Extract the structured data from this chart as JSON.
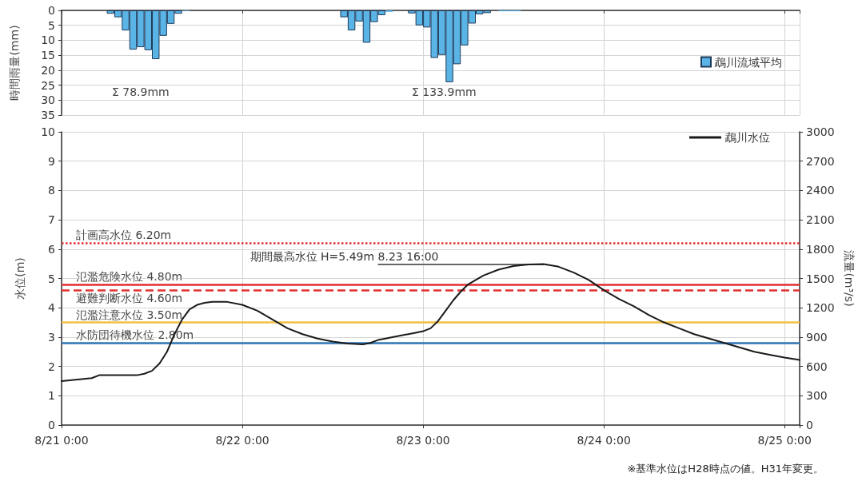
{
  "chart_data": [
    {
      "type": "bar",
      "ylabel": "時間雨量(mm)",
      "legend": "right",
      "grid": true,
      "tick_labels": "y",
      "xlim": [
        "--08-21T00:00",
        "--08-25T02:00"
      ],
      "xticks": [
        {
          "value": "--08-21T00:00",
          "label": null
        },
        {
          "value": "--08-22T00:00",
          "label": null
        },
        {
          "value": "--08-23T00:00",
          "label": null
        },
        {
          "value": "--08-24T00:00",
          "label": null
        },
        {
          "value": "--08-25T00:00",
          "label": null
        }
      ],
      "ylim": [
        35,
        0
      ],
      "yticks": [
        0,
        5,
        10,
        15,
        20,
        25,
        30,
        35
      ],
      "annotations": [
        "Σ 78.9mm",
        "Σ 133.9mm"
      ],
      "series": [
        {
          "name": "鵡川流域平均",
          "color": "#5ab4e6",
          "x": [
            "--08-21T06:30",
            "--08-21T07:30",
            "--08-21T08:30",
            "--08-21T09:30",
            "--08-21T10:30",
            "--08-21T11:30",
            "--08-21T12:30",
            "--08-21T13:30",
            "--08-21T14:30",
            "--08-21T15:30",
            "--08-21T16:30",
            "--08-22T13:30",
            "--08-22T14:30",
            "--08-22T15:30",
            "--08-22T16:30",
            "--08-22T17:30",
            "--08-22T18:30",
            "--08-22T19:30",
            "--08-22T22:30",
            "--08-22T23:30",
            "--08-23T00:30",
            "--08-23T01:30",
            "--08-23T02:30",
            "--08-23T03:30",
            "--08-23T04:30",
            "--08-23T05:30",
            "--08-23T06:30",
            "--08-23T07:30",
            "--08-23T08:30",
            "--08-23T10:30",
            "--08-23T11:30",
            "--08-23T12:30"
          ],
          "values": [
            1.1,
            2.3,
            6.7,
            13.1,
            12.3,
            13.3,
            16.3,
            8.5,
            4.5,
            1.1,
            0.2,
            2.3,
            6.7,
            3.7,
            10.8,
            3.9,
            1.6,
            0.5,
            1.0,
            5.0,
            5.7,
            15.9,
            14.9,
            24.0,
            18.0,
            11.7,
            4.4,
            1.3,
            0.9,
            0.3,
            0.3,
            0.3
          ]
        }
      ]
    },
    {
      "type": "line",
      "ylabel": "水位(m)",
      "y2label": "流量(m³/s)",
      "legend": "top right",
      "grid": true,
      "marker": "none",
      "line_style": "solid",
      "xlim": [
        "--08-21T00:00",
        "--08-25T02:00"
      ],
      "xticks": [
        {
          "value": "--08-21T00:00",
          "label": "8/21 0:00"
        },
        {
          "value": "--08-22T00:00",
          "label": "8/22 0:00"
        },
        {
          "value": "--08-23T00:00",
          "label": "8/23 0:00"
        },
        {
          "value": "--08-24T00:00",
          "label": "8/24 0:00"
        },
        {
          "value": "--08-25T00:00",
          "label": "8/25 0:00"
        }
      ],
      "ylim": [
        0,
        10
      ],
      "yticks": [
        0,
        1,
        2,
        3,
        4,
        5,
        6,
        7,
        8,
        9,
        10
      ],
      "y2lim": [
        0,
        3000
      ],
      "y2ticks": [
        0,
        300,
        600,
        900,
        1200,
        1500,
        1800,
        2100,
        2400,
        2700,
        3000
      ],
      "ref_lines": [
        {
          "axis": "y",
          "value": 6.2,
          "label": "計画高水位 6.20m",
          "color": "#e03030",
          "line_style": "dotted"
        },
        {
          "axis": "y",
          "value": 4.8,
          "label": "氾濫危険水位 4.80m",
          "color": "#e03030",
          "line_style": "solid"
        },
        {
          "axis": "y",
          "value": 4.6,
          "label": "避難判断水位 4.60m",
          "color": "#e03030",
          "line_style": "dashed"
        },
        {
          "axis": "y",
          "value": 3.5,
          "label": "氾濫注意水位 3.50m",
          "color": "#f0c040",
          "line_style": "solid"
        },
        {
          "axis": "y",
          "value": 2.8,
          "label": "水防団待機水位 2.80m",
          "color": "#2e75b6",
          "line_style": "solid"
        }
      ],
      "annotations": [
        {
          "text": "期間最高水位 H=5.49m 8.23 16:00",
          "x": "--08-23T16:00",
          "y": 5.49
        },
        "※基準水位はH28時点の値。H31年変更。"
      ],
      "series": [
        {
          "name": "鵡川水位",
          "color": "#1a1a1a",
          "x": [
            "--08-21T00:00",
            "--08-21T04:00",
            "--08-21T05:00",
            "--08-21T10:00",
            "--08-21T11:00",
            "--08-21T12:00",
            "--08-21T13:00",
            "--08-21T14:00",
            "--08-21T15:00",
            "--08-21T16:00",
            "--08-21T17:00",
            "--08-21T18:00",
            "--08-21T19:00",
            "--08-21T20:00",
            "--08-21T22:00",
            "--08-22T00:00",
            "--08-22T02:00",
            "--08-22T04:00",
            "--08-22T06:00",
            "--08-22T08:00",
            "--08-22T10:00",
            "--08-22T12:00",
            "--08-22T14:00",
            "--08-22T16:00",
            "--08-22T17:00",
            "--08-22T18:00",
            "--08-22T19:00",
            "--08-22T21:00",
            "--08-22T23:00",
            "--08-23T00:00",
            "--08-23T01:00",
            "--08-23T02:00",
            "--08-23T03:00",
            "--08-23T04:00",
            "--08-23T05:00",
            "--08-23T06:00",
            "--08-23T08:00",
            "--08-23T10:00",
            "--08-23T12:00",
            "--08-23T14:00",
            "--08-23T16:00",
            "--08-23T18:00",
            "--08-23T20:00",
            "--08-23T22:00",
            "--08-24T00:00",
            "--08-24T02:00",
            "--08-24T04:00",
            "--08-24T06:00",
            "--08-24T08:00",
            "--08-24T10:00",
            "--08-24T12:00",
            "--08-24T14:00",
            "--08-24T16:00",
            "--08-24T18:00",
            "--08-24T20:00",
            "--08-24T22:00",
            "--08-25T00:00",
            "--08-25T02:00"
          ],
          "values": [
            1.5,
            1.6,
            1.7,
            1.7,
            1.75,
            1.85,
            2.1,
            2.5,
            3.1,
            3.6,
            3.95,
            4.1,
            4.17,
            4.2,
            4.2,
            4.1,
            3.9,
            3.6,
            3.3,
            3.1,
            2.95,
            2.85,
            2.78,
            2.75,
            2.8,
            2.9,
            2.95,
            3.05,
            3.15,
            3.2,
            3.3,
            3.55,
            3.9,
            4.25,
            4.55,
            4.8,
            5.1,
            5.3,
            5.42,
            5.48,
            5.49,
            5.4,
            5.2,
            4.95,
            4.6,
            4.3,
            4.05,
            3.75,
            3.5,
            3.3,
            3.1,
            2.95,
            2.8,
            2.65,
            2.5,
            2.4,
            2.3,
            2.22
          ]
        }
      ]
    }
  ]
}
